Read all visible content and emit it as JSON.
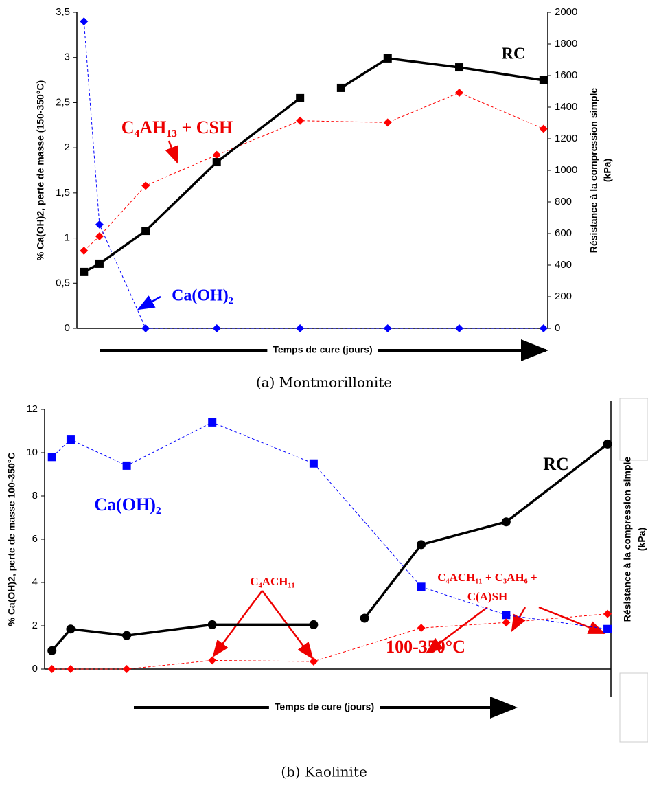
{
  "chart_data": [
    {
      "type": "line",
      "caption": "(a) Montmorillonite",
      "xlabel": "Temps de cure (jours)",
      "ylabel": "% Ca(OH)2, perte de masse (150-350°C)",
      "y2label": [
        "Résistance à la compression simple",
        "(kPa)"
      ],
      "xlim": [
        0,
        100
      ],
      "ylim": [
        0,
        3.5
      ],
      "yticks": [
        0,
        {
          "value": 0.5,
          "label": "0,5"
        },
        1,
        {
          "value": 1.5,
          "label": "1,5"
        },
        2,
        {
          "value": 2.5,
          "label": "2,5"
        },
        3,
        {
          "value": 3.5,
          "label": "3,5"
        }
      ],
      "y2lim": [
        0,
        2000
      ],
      "y2ticks": [
        0,
        200,
        400,
        600,
        800,
        1000,
        1200,
        1400,
        1600,
        1800,
        2000
      ],
      "annotations": [
        "RC",
        "C₄AH₁₃ + CSH",
        "Ca(OH)₂"
      ],
      "series": [
        {
          "color": "#ff0000",
          "marker": "diamond",
          "dashed": true,
          "axis": "y",
          "x": [
            1.5,
            4.8,
            14.6,
            29.7,
            47.4,
            66.0,
            81.2,
            99.1
          ],
          "values": [
            0.86,
            1.02,
            1.58,
            1.92,
            2.3,
            2.28,
            2.61,
            2.21
          ]
        },
        {
          "color": "#0000ff",
          "marker": "diamond",
          "dashed": true,
          "axis": "y",
          "x": [
            1.5,
            4.8,
            14.6,
            29.7,
            47.4,
            66.0,
            81.2,
            99.1
          ],
          "values": [
            3.4,
            1.15,
            0,
            0,
            0,
            0,
            0,
            0
          ]
        },
        {
          "color": "#000000",
          "marker": "square",
          "dashed": false,
          "axis": "y2",
          "x": [
            1.5,
            4.8,
            14.6,
            29.7,
            47.4,
            null,
            56.1,
            66.0,
            81.2,
            99.1
          ],
          "values": [
            357,
            409,
            617,
            1052,
            1457,
            null,
            1522,
            1709,
            1652,
            1570
          ]
        }
      ]
    },
    {
      "type": "line",
      "caption": "(b) Kaolinite",
      "xlabel": "Temps de cure (jours)",
      "ylabel": "% Ca(OH)2, perte de masse 100-350°C",
      "y2label": [
        "Résistance à la compression simple",
        "(kPa)"
      ],
      "xlim": [
        0,
        100
      ],
      "ylim": [
        0,
        12
      ],
      "yticks": [
        0,
        2,
        4,
        6,
        8,
        10,
        12
      ],
      "annotations": [
        "RC",
        "Ca(OH)₂",
        "C₄ACH₁₁",
        "C₄ACH₁₁ + C₃AH₆ +",
        "C(A)SH",
        "100-350°C"
      ],
      "series": [
        {
          "color": "#0000ff",
          "marker": "square",
          "dashed": true,
          "axis": "y",
          "x": [
            1.3,
            4.6,
            14.5,
            29.6,
            47.5,
            66.5,
            81.5,
            99.4
          ],
          "values": [
            9.8,
            10.6,
            9.4,
            11.4,
            9.5,
            3.8,
            2.5,
            1.85
          ]
        },
        {
          "color": "#ff0000",
          "marker": "diamond",
          "dashed": true,
          "axis": "y",
          "x": [
            1.3,
            4.6,
            14.5,
            29.6,
            47.5,
            66.5,
            81.5,
            99.4
          ],
          "values": [
            0,
            0,
            0,
            0.4,
            0.35,
            1.9,
            2.15,
            2.55
          ]
        },
        {
          "color": "#000000",
          "marker": "circle",
          "dashed": false,
          "axis": "y",
          "x": [
            1.3,
            4.6,
            14.5,
            29.6,
            47.5,
            null,
            56.5,
            66.5,
            81.5,
            99.4
          ],
          "values": [
            0.85,
            1.85,
            1.55,
            2.05,
            2.05,
            null,
            2.35,
            5.75,
            6.8,
            10.4
          ]
        }
      ]
    }
  ]
}
